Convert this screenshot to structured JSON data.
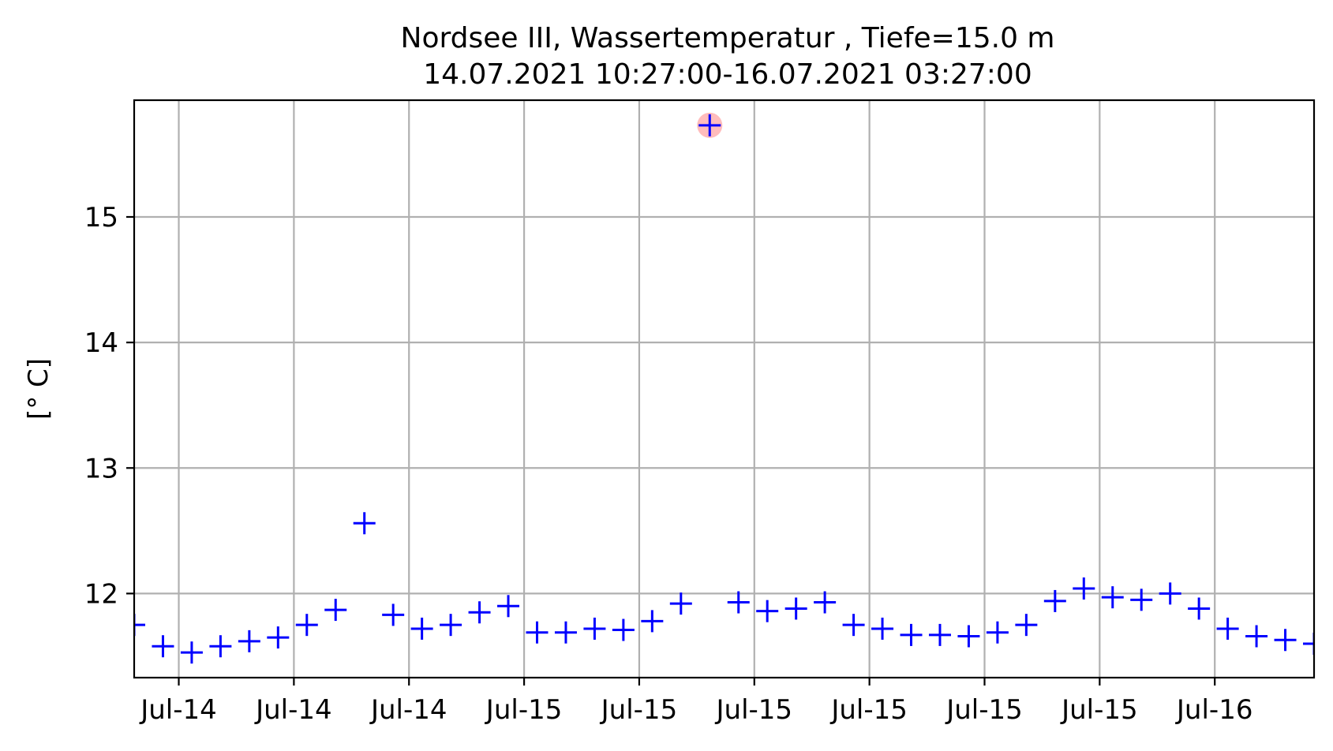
{
  "chart_data": {
    "type": "scatter",
    "title": "Nordsee III, Wassertemperatur , Tiefe=15.0 m",
    "subtitle": "14.07.2021 10:27:00-16.07.2021 03:27:00",
    "xlabel": "",
    "ylabel": "[° C]",
    "x_tick_labels": [
      "Jul-14",
      "Jul-14",
      "Jul-14",
      "Jul-15",
      "Jul-15",
      "Jul-15",
      "Jul-15",
      "Jul-15",
      "Jul-15",
      "Jul-16"
    ],
    "x_ticks_hours_utc": [
      [
        14,
        12
      ],
      [
        14,
        16
      ],
      [
        14,
        20
      ],
      [
        15,
        0
      ],
      [
        15,
        4
      ],
      [
        15,
        8
      ],
      [
        15,
        12
      ],
      [
        15,
        16
      ],
      [
        15,
        20
      ],
      [
        16,
        0
      ]
    ],
    "xlim_start": "14.07.2021 10:27:00",
    "xlim_end": "16.07.2021 03:27:00",
    "y_ticks": [
      12,
      13,
      14,
      15
    ],
    "ylim": [
      11.33,
      15.93
    ],
    "grid": true,
    "marker": "+",
    "series_color": "#0000ff",
    "highlight_color": "#ffb0b0",
    "highlight_index": 20,
    "series": [
      {
        "x": [
          "14.07.2021 10:27",
          "14.07.2021 11:27",
          "14.07.2021 12:27",
          "14.07.2021 13:27",
          "14.07.2021 14:27",
          "14.07.2021 15:27",
          "14.07.2021 16:27",
          "14.07.2021 17:27",
          "14.07.2021 18:27",
          "14.07.2021 19:27",
          "14.07.2021 20:27",
          "14.07.2021 21:27",
          "14.07.2021 22:27",
          "14.07.2021 23:27",
          "15.07.2021 00:27",
          "15.07.2021 01:27",
          "15.07.2021 02:27",
          "15.07.2021 03:27",
          "15.07.2021 04:27",
          "15.07.2021 05:27",
          "15.07.2021 06:27",
          "15.07.2021 07:27",
          "15.07.2021 08:27",
          "15.07.2021 09:27",
          "15.07.2021 10:27",
          "15.07.2021 11:27",
          "15.07.2021 12:27",
          "15.07.2021 13:27",
          "15.07.2021 14:27",
          "15.07.2021 15:27",
          "15.07.2021 16:27",
          "15.07.2021 17:27",
          "15.07.2021 18:27",
          "15.07.2021 19:27",
          "15.07.2021 20:27",
          "15.07.2021 21:27",
          "15.07.2021 22:27",
          "15.07.2021 23:27",
          "16.07.2021 00:27",
          "16.07.2021 01:27",
          "16.07.2021 02:27",
          "16.07.2021 03:27"
        ],
        "y": [
          11.75,
          11.58,
          11.53,
          11.58,
          11.62,
          11.65,
          11.75,
          11.87,
          12.56,
          11.83,
          11.72,
          11.75,
          11.85,
          11.9,
          11.69,
          11.69,
          11.72,
          11.71,
          11.78,
          11.92,
          15.73,
          11.93,
          11.86,
          11.88,
          11.93,
          11.75,
          11.72,
          11.67,
          11.67,
          11.66,
          11.69,
          11.75,
          11.94,
          12.04,
          11.97,
          11.95,
          12.0,
          11.88,
          11.72,
          11.66,
          11.63,
          11.6
        ]
      }
    ]
  }
}
